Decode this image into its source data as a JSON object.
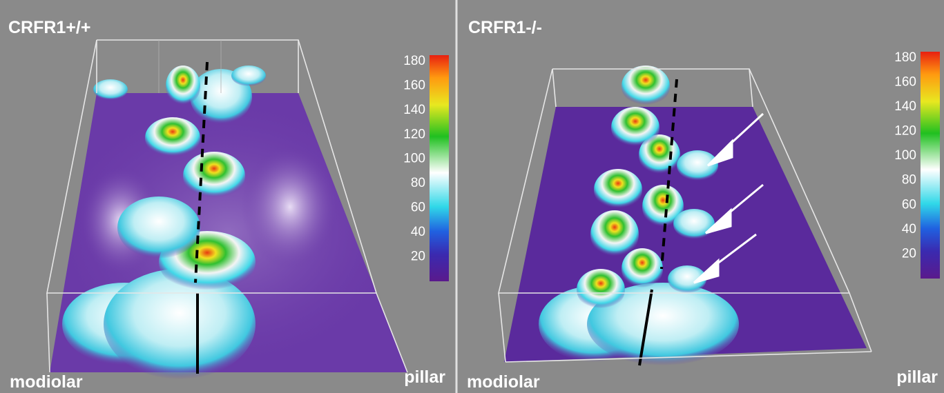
{
  "panels": [
    {
      "title": "CRFR1+/+",
      "colorbar": {
        "clim": [
          0,
          185
        ],
        "ticks": [
          20,
          40,
          60,
          80,
          100,
          120,
          140,
          160,
          180
        ]
      },
      "labels": {
        "left": "modiolar",
        "right": "pillar"
      }
    },
    {
      "title": "CRFR1-/-",
      "colorbar": {
        "clim": [
          0,
          185
        ],
        "ticks": [
          20,
          40,
          60,
          80,
          100,
          120,
          140,
          160,
          180
        ]
      },
      "labels": {
        "left": "modiolar",
        "right": "pillar"
      }
    }
  ]
}
